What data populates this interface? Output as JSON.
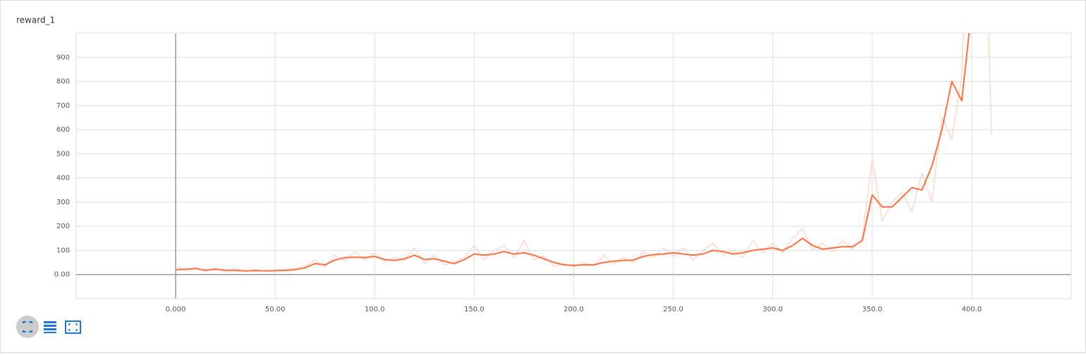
{
  "chart_data": {
    "type": "line",
    "title": "reward_1",
    "xlim": [
      -50,
      450
    ],
    "ylim": [
      -100,
      1000
    ],
    "xticks": [
      {
        "value": 0,
        "label": "0.000"
      },
      {
        "value": 50,
        "label": "50.00"
      },
      {
        "value": 100,
        "label": "100.0"
      },
      {
        "value": 150,
        "label": "150.0"
      },
      {
        "value": 200,
        "label": "200.0"
      },
      {
        "value": 250,
        "label": "250.0"
      },
      {
        "value": 300,
        "label": "300.0"
      },
      {
        "value": 350,
        "label": "350.0"
      },
      {
        "value": 400,
        "label": "400.0"
      }
    ],
    "yticks": [
      {
        "value": 0,
        "label": "0.00"
      },
      100,
      200,
      300,
      400,
      500,
      600,
      700,
      800,
      900
    ],
    "grid": true,
    "x": [
      0,
      5,
      10,
      15,
      20,
      25,
      30,
      35,
      40,
      45,
      50,
      55,
      60,
      65,
      70,
      75,
      80,
      85,
      90,
      95,
      100,
      105,
      110,
      115,
      120,
      125,
      130,
      135,
      140,
      145,
      150,
      155,
      160,
      165,
      170,
      175,
      180,
      185,
      190,
      195,
      200,
      205,
      210,
      215,
      220,
      225,
      230,
      235,
      240,
      245,
      250,
      255,
      260,
      265,
      270,
      275,
      280,
      285,
      290,
      295,
      300,
      305,
      310,
      315,
      320,
      325,
      330,
      335,
      340,
      345,
      350,
      355,
      360,
      365,
      370,
      375,
      380,
      385,
      390,
      395,
      400,
      405,
      410
    ],
    "series": [
      {
        "name": "raw",
        "color": "#fcd9cc",
        "values": [
          35,
          15,
          30,
          12,
          28,
          10,
          25,
          12,
          20,
          14,
          18,
          20,
          25,
          35,
          60,
          30,
          80,
          55,
          95,
          60,
          90,
          55,
          70,
          60,
          110,
          45,
          80,
          40,
          50,
          70,
          120,
          60,
          100,
          120,
          70,
          140,
          60,
          75,
          35,
          45,
          30,
          50,
          35,
          80,
          45,
          70,
          50,
          95,
          70,
          110,
          75,
          110,
          60,
          100,
          130,
          80,
          100,
          70,
          140,
          90,
          130,
          90,
          150,
          190,
          100,
          130,
          95,
          140,
          105,
          150,
          480,
          220,
          300,
          340,
          260,
          420,
          300,
          650,
          560,
          820,
          2000,
          2000,
          580
        ]
      },
      {
        "name": "smoothed",
        "color": "#ff7043",
        "values": [
          20,
          22,
          25,
          18,
          22,
          18,
          17,
          15,
          16,
          15,
          16,
          17,
          20,
          28,
          45,
          40,
          60,
          70,
          72,
          70,
          75,
          62,
          58,
          65,
          80,
          62,
          65,
          55,
          45,
          62,
          85,
          80,
          85,
          95,
          85,
          90,
          80,
          65,
          50,
          40,
          38,
          40,
          40,
          50,
          55,
          58,
          60,
          75,
          82,
          85,
          90,
          85,
          80,
          85,
          100,
          95,
          85,
          90,
          100,
          105,
          110,
          100,
          120,
          150,
          120,
          105,
          110,
          115,
          115,
          140,
          330,
          280,
          280,
          320,
          360,
          350,
          450,
          600,
          800,
          720,
          1100,
          null,
          null
        ]
      }
    ]
  }
}
